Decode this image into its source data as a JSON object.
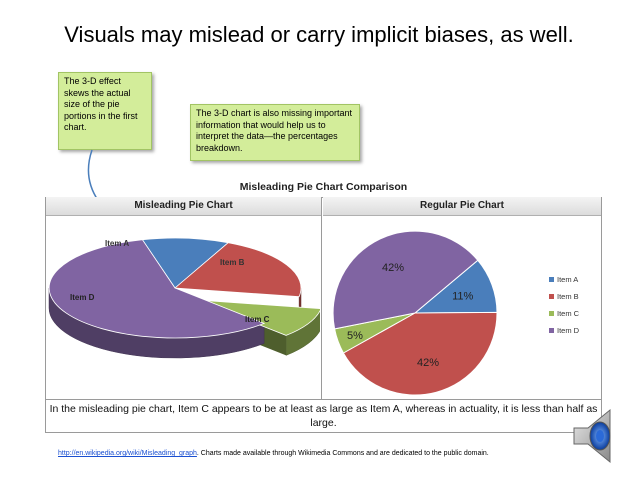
{
  "slide": {
    "title": "Visuals may mislead or carry implicit biases, as well."
  },
  "callouts": [
    {
      "text": "The 3-D effect skews the actual size of the pie portions in the first chart."
    },
    {
      "text": "The 3-D chart is also missing important information that would help us to interpret the data—the percentages breakdown."
    }
  ],
  "chart_data": {
    "type": "pie",
    "title": "Misleading Pie Chart Comparison",
    "panels": [
      {
        "heading": "Misleading Pie Chart",
        "style": "3d",
        "labels": [
          "Item A",
          "Item B",
          "Item C",
          "Item D"
        ]
      },
      {
        "heading": "Regular Pie Chart",
        "style": "2d",
        "labels": [
          "Item A",
          "Item B",
          "Item C",
          "Item D"
        ],
        "values": [
          11,
          42,
          5,
          42
        ],
        "value_labels": [
          "11%",
          "42%",
          "5%",
          "42%"
        ]
      }
    ],
    "categories": [
      "Item A",
      "Item B",
      "Item C",
      "Item D"
    ],
    "colors": [
      "#4a7ebb",
      "#c0504d",
      "#9bbb59",
      "#8064a2"
    ],
    "legend": "right",
    "caption": "In the misleading pie chart, Item C appears to be at least as large as Item A, whereas in actuality, it is less than half as large."
  },
  "footer": {
    "link_text": "http://en.wikipedia.org/wiki/Misleading_graph",
    "text": ". Charts made available through Wikimedia Commons and are dedicated to the public domain."
  },
  "icons": {
    "speaker": "speaker-icon"
  }
}
